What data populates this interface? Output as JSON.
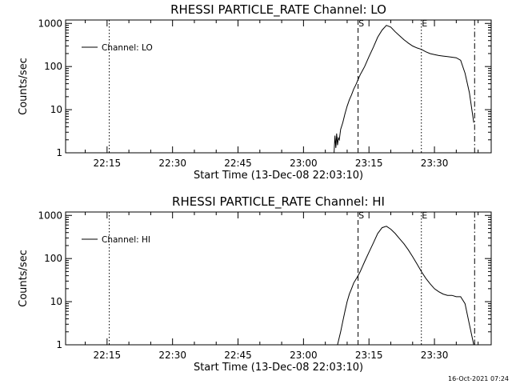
{
  "chart_data": [
    {
      "type": "line",
      "title": "RHESSI PARTICLE_RATE Channel: LO",
      "xlabel": "Start Time (13-Dec-08 22:03:10)",
      "ylabel": "Counts/sec",
      "yscale": "log",
      "ylim": [
        1,
        1200
      ],
      "xlim_minutes": [
        2.5,
        100.0
      ],
      "x_tick_labels": [
        "22:15",
        "22:30",
        "22:45",
        "23:00",
        "23:15",
        "23:30"
      ],
      "x_tick_minutes": [
        12,
        27,
        42,
        57,
        72,
        87
      ],
      "y_tick_labels": [
        "1",
        "10",
        "100",
        "1000"
      ],
      "y_tick_values": [
        1,
        10,
        100,
        1000
      ],
      "legend": "Channel: LO",
      "legend_position": "top-left",
      "markers": [
        {
          "label": "",
          "x_minutes": 12.5,
          "style": "dotted"
        },
        {
          "label": "S",
          "x_minutes": 69.5,
          "style": "dashed"
        },
        {
          "label": "E",
          "x_minutes": 84.0,
          "style": "dotted"
        },
        {
          "label": "",
          "x_minutes": 96.2,
          "style": "dashdot"
        }
      ],
      "series": [
        {
          "x_minutes": [
            64.0,
            64.2,
            64.4,
            64.6,
            64.8,
            65.0,
            65.2,
            65.5,
            66.0,
            66.5,
            67.0,
            67.5,
            68.0,
            68.5,
            69.0,
            69.5,
            70.0,
            70.5,
            71.0,
            72.0,
            73.0,
            74.0,
            75.0,
            76.0,
            77.0,
            78.0,
            79.0,
            80.0,
            81.0,
            82.0,
            83.0,
            84.0,
            85.0,
            86.0,
            87.0,
            88.0,
            89.0,
            90.0,
            91.0,
            92.0,
            93.0,
            94.0,
            95.0,
            96.0
          ],
          "values": [
            1.0,
            2.5,
            1.3,
            2.8,
            1.5,
            2.2,
            2.0,
            3.5,
            5.0,
            8.0,
            12.0,
            17.0,
            22.0,
            30.0,
            38.0,
            50.0,
            65.0,
            80.0,
            100.0,
            170.0,
            280.0,
            480.0,
            700.0,
            900.0,
            820.0,
            640.0,
            520.0,
            420.0,
            350.0,
            300.0,
            270.0,
            250.0,
            220.0,
            200.0,
            190.0,
            180.0,
            175.0,
            170.0,
            165.0,
            160.0,
            140.0,
            70.0,
            25.0,
            5.0
          ]
        }
      ]
    },
    {
      "type": "line",
      "title": "RHESSI PARTICLE_RATE Channel: HI",
      "xlabel": "Start Time (13-Dec-08 22:03:10)",
      "ylabel": "Counts/sec",
      "yscale": "log",
      "ylim": [
        1,
        1200
      ],
      "xlim_minutes": [
        2.5,
        100.0
      ],
      "x_tick_labels": [
        "22:15",
        "22:30",
        "22:45",
        "23:00",
        "23:15",
        "23:30"
      ],
      "x_tick_minutes": [
        12,
        27,
        42,
        57,
        72,
        87
      ],
      "y_tick_labels": [
        "1",
        "10",
        "100",
        "1000"
      ],
      "y_tick_values": [
        1,
        10,
        100,
        1000
      ],
      "legend": "Channel: HI",
      "legend_position": "top-left",
      "markers": [
        {
          "label": "",
          "x_minutes": 12.5,
          "style": "dotted"
        },
        {
          "label": "S",
          "x_minutes": 69.5,
          "style": "dashed"
        },
        {
          "label": "E",
          "x_minutes": 84.0,
          "style": "dotted"
        },
        {
          "label": "",
          "x_minutes": 96.2,
          "style": "dashdot"
        }
      ],
      "series": [
        {
          "x_minutes": [
            64.8,
            65.5,
            66.0,
            66.5,
            67.0,
            67.5,
            68.0,
            68.5,
            69.0,
            69.5,
            70.0,
            70.5,
            71.0,
            72.0,
            73.0,
            74.0,
            75.0,
            76.0,
            77.0,
            78.0,
            79.0,
            80.0,
            81.0,
            82.0,
            83.0,
            84.0,
            85.0,
            86.0,
            87.0,
            88.0,
            89.0,
            90.0,
            91.0,
            92.0,
            93.0,
            94.0,
            95.0,
            96.0
          ],
          "values": [
            1.0,
            2.0,
            3.5,
            6.0,
            10.0,
            15.0,
            20.0,
            27.0,
            33.0,
            40.0,
            50.0,
            65.0,
            85.0,
            140.0,
            230.0,
            380.0,
            520.0,
            560.0,
            480.0,
            380.0,
            290.0,
            220.0,
            160.0,
            110.0,
            75.0,
            50.0,
            35.0,
            26.0,
            20.0,
            17.0,
            15.0,
            14.0,
            14.0,
            13.0,
            13.0,
            9.0,
            3.0,
            1.0
          ]
        }
      ]
    }
  ],
  "footer": {
    "timestamp": "16-Oct-2021 07:24"
  }
}
